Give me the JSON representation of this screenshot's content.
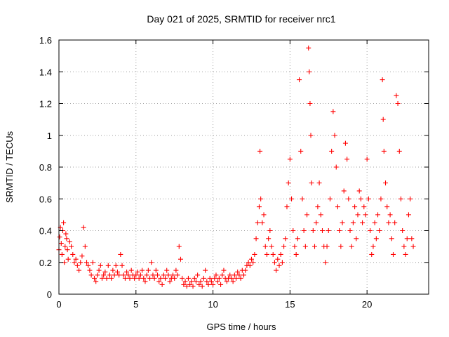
{
  "chart_data": {
    "type": "scatter",
    "title": "Day 021 of 2025, SRMTID for receiver nrc1",
    "xlabel": "GPS time / hours",
    "ylabel": "SRMTID / TECUs",
    "xlim": [
      0,
      24
    ],
    "ylim": [
      0,
      1.6
    ],
    "x_ticks": [
      0,
      5,
      10,
      15,
      20
    ],
    "x_tick_labels": [
      "0",
      "5",
      "10",
      "15",
      "20"
    ],
    "y_ticks": [
      0,
      0.2,
      0.4,
      0.6,
      0.8,
      1,
      1.2,
      1.4,
      1.6
    ],
    "y_tick_labels": [
      "0",
      "0.2",
      "0.4",
      "0.6",
      "0.8",
      "1",
      "1.2",
      "1.4",
      "1.6"
    ],
    "grid": true,
    "marker": "plus",
    "color": "#ff0000",
    "series": [
      {
        "name": "SRMTID",
        "points": [
          [
            0.0,
            0.28
          ],
          [
            0.05,
            0.36
          ],
          [
            0.1,
            0.42
          ],
          [
            0.15,
            0.32
          ],
          [
            0.2,
            0.25
          ],
          [
            0.25,
            0.4
          ],
          [
            0.3,
            0.45
          ],
          [
            0.35,
            0.2
          ],
          [
            0.4,
            0.3
          ],
          [
            0.45,
            0.38
          ],
          [
            0.5,
            0.35
          ],
          [
            0.55,
            0.28
          ],
          [
            0.6,
            0.22
          ],
          [
            0.7,
            0.33
          ],
          [
            0.8,
            0.3
          ],
          [
            0.9,
            0.25
          ],
          [
            1.0,
            0.2
          ],
          [
            1.1,
            0.22
          ],
          [
            1.2,
            0.18
          ],
          [
            1.3,
            0.15
          ],
          [
            1.4,
            0.2
          ],
          [
            1.5,
            0.24
          ],
          [
            1.6,
            0.42
          ],
          [
            1.7,
            0.3
          ],
          [
            1.8,
            0.2
          ],
          [
            1.9,
            0.18
          ],
          [
            2.0,
            0.15
          ],
          [
            2.1,
            0.12
          ],
          [
            2.2,
            0.2
          ],
          [
            2.3,
            0.1
          ],
          [
            2.4,
            0.08
          ],
          [
            2.5,
            0.12
          ],
          [
            2.6,
            0.15
          ],
          [
            2.7,
            0.18
          ],
          [
            2.8,
            0.1
          ],
          [
            2.9,
            0.12
          ],
          [
            3.0,
            0.14
          ],
          [
            3.1,
            0.1
          ],
          [
            3.2,
            0.18
          ],
          [
            3.3,
            0.12
          ],
          [
            3.4,
            0.1
          ],
          [
            3.5,
            0.15
          ],
          [
            3.6,
            0.12
          ],
          [
            3.7,
            0.18
          ],
          [
            3.8,
            0.14
          ],
          [
            3.9,
            0.12
          ],
          [
            4.0,
            0.25
          ],
          [
            4.1,
            0.18
          ],
          [
            4.2,
            0.12
          ],
          [
            4.3,
            0.1
          ],
          [
            4.4,
            0.14
          ],
          [
            4.5,
            0.12
          ],
          [
            4.6,
            0.1
          ],
          [
            4.7,
            0.15
          ],
          [
            4.8,
            0.12
          ],
          [
            4.9,
            0.1
          ],
          [
            5.0,
            0.12
          ],
          [
            5.1,
            0.14
          ],
          [
            5.2,
            0.1
          ],
          [
            5.3,
            0.12
          ],
          [
            5.4,
            0.15
          ],
          [
            5.5,
            0.1
          ],
          [
            5.6,
            0.08
          ],
          [
            5.7,
            0.12
          ],
          [
            5.8,
            0.15
          ],
          [
            5.9,
            0.1
          ],
          [
            6.0,
            0.2
          ],
          [
            6.1,
            0.12
          ],
          [
            6.2,
            0.1
          ],
          [
            6.3,
            0.15
          ],
          [
            6.4,
            0.12
          ],
          [
            6.5,
            0.08
          ],
          [
            6.6,
            0.1
          ],
          [
            6.7,
            0.06
          ],
          [
            6.8,
            0.12
          ],
          [
            6.9,
            0.1
          ],
          [
            7.0,
            0.15
          ],
          [
            7.1,
            0.12
          ],
          [
            7.2,
            0.08
          ],
          [
            7.3,
            0.1
          ],
          [
            7.4,
            0.12
          ],
          [
            7.5,
            0.1
          ],
          [
            7.6,
            0.15
          ],
          [
            7.7,
            0.12
          ],
          [
            7.8,
            0.3
          ],
          [
            7.9,
            0.22
          ],
          [
            8.0,
            0.1
          ],
          [
            8.1,
            0.06
          ],
          [
            8.2,
            0.08
          ],
          [
            8.3,
            0.05
          ],
          [
            8.4,
            0.1
          ],
          [
            8.5,
            0.06
          ],
          [
            8.6,
            0.08
          ],
          [
            8.7,
            0.05
          ],
          [
            8.8,
            0.1
          ],
          [
            8.9,
            0.08
          ],
          [
            9.0,
            0.12
          ],
          [
            9.1,
            0.06
          ],
          [
            9.2,
            0.08
          ],
          [
            9.3,
            0.05
          ],
          [
            9.4,
            0.1
          ],
          [
            9.5,
            0.15
          ],
          [
            9.6,
            0.08
          ],
          [
            9.7,
            0.06
          ],
          [
            9.8,
            0.1
          ],
          [
            9.9,
            0.08
          ],
          [
            10.0,
            0.06
          ],
          [
            10.1,
            0.1
          ],
          [
            10.2,
            0.12
          ],
          [
            10.3,
            0.08
          ],
          [
            10.4,
            0.1
          ],
          [
            10.5,
            0.06
          ],
          [
            10.6,
            0.12
          ],
          [
            10.7,
            0.15
          ],
          [
            10.8,
            0.1
          ],
          [
            10.9,
            0.08
          ],
          [
            11.0,
            0.1
          ],
          [
            11.1,
            0.12
          ],
          [
            11.2,
            0.1
          ],
          [
            11.3,
            0.08
          ],
          [
            11.4,
            0.12
          ],
          [
            11.5,
            0.1
          ],
          [
            11.6,
            0.14
          ],
          [
            11.7,
            0.12
          ],
          [
            11.8,
            0.1
          ],
          [
            11.9,
            0.15
          ],
          [
            12.0,
            0.12
          ],
          [
            12.1,
            0.15
          ],
          [
            12.2,
            0.18
          ],
          [
            12.3,
            0.2
          ],
          [
            12.4,
            0.18
          ],
          [
            12.5,
            0.22
          ],
          [
            12.6,
            0.2
          ],
          [
            12.7,
            0.25
          ],
          [
            12.8,
            0.35
          ],
          [
            12.9,
            0.45
          ],
          [
            13.0,
            0.55
          ],
          [
            13.05,
            0.9
          ],
          [
            13.1,
            0.6
          ],
          [
            13.2,
            0.45
          ],
          [
            13.3,
            0.5
          ],
          [
            13.4,
            0.3
          ],
          [
            13.5,
            0.25
          ],
          [
            13.6,
            0.35
          ],
          [
            13.7,
            0.4
          ],
          [
            13.8,
            0.3
          ],
          [
            13.9,
            0.25
          ],
          [
            14.0,
            0.2
          ],
          [
            14.1,
            0.15
          ],
          [
            14.2,
            0.22
          ],
          [
            14.3,
            0.18
          ],
          [
            14.4,
            0.25
          ],
          [
            14.5,
            0.2
          ],
          [
            14.6,
            0.3
          ],
          [
            14.7,
            0.35
          ],
          [
            14.8,
            0.55
          ],
          [
            14.9,
            0.7
          ],
          [
            15.0,
            0.85
          ],
          [
            15.1,
            0.6
          ],
          [
            15.2,
            0.4
          ],
          [
            15.3,
            0.3
          ],
          [
            15.4,
            0.25
          ],
          [
            15.5,
            0.35
          ],
          [
            15.6,
            1.35
          ],
          [
            15.7,
            0.9
          ],
          [
            15.8,
            0.6
          ],
          [
            15.9,
            0.4
          ],
          [
            16.0,
            0.3
          ],
          [
            16.1,
            0.5
          ],
          [
            16.2,
            1.55
          ],
          [
            16.25,
            1.4
          ],
          [
            16.3,
            1.2
          ],
          [
            16.35,
            1.0
          ],
          [
            16.4,
            0.7
          ],
          [
            16.5,
            0.4
          ],
          [
            16.6,
            0.3
          ],
          [
            16.7,
            0.45
          ],
          [
            16.8,
            0.55
          ],
          [
            16.9,
            0.7
          ],
          [
            17.0,
            0.5
          ],
          [
            17.1,
            0.4
          ],
          [
            17.2,
            0.3
          ],
          [
            17.3,
            0.2
          ],
          [
            17.4,
            0.3
          ],
          [
            17.5,
            0.4
          ],
          [
            17.6,
            0.6
          ],
          [
            17.7,
            0.9
          ],
          [
            17.8,
            1.15
          ],
          [
            17.9,
            1.0
          ],
          [
            18.0,
            0.8
          ],
          [
            18.1,
            0.55
          ],
          [
            18.2,
            0.4
          ],
          [
            18.3,
            0.3
          ],
          [
            18.4,
            0.45
          ],
          [
            18.5,
            0.65
          ],
          [
            18.6,
            0.95
          ],
          [
            18.7,
            0.85
          ],
          [
            18.8,
            0.6
          ],
          [
            18.9,
            0.4
          ],
          [
            19.0,
            0.3
          ],
          [
            19.1,
            0.45
          ],
          [
            19.2,
            0.55
          ],
          [
            19.3,
            0.35
          ],
          [
            19.4,
            0.5
          ],
          [
            19.5,
            0.65
          ],
          [
            19.6,
            0.6
          ],
          [
            19.7,
            0.45
          ],
          [
            19.8,
            0.55
          ],
          [
            19.9,
            0.5
          ],
          [
            20.0,
            0.85
          ],
          [
            20.1,
            0.6
          ],
          [
            20.2,
            0.4
          ],
          [
            20.3,
            0.25
          ],
          [
            20.4,
            0.3
          ],
          [
            20.5,
            0.45
          ],
          [
            20.6,
            0.35
          ],
          [
            20.7,
            0.5
          ],
          [
            20.8,
            0.4
          ],
          [
            20.9,
            0.6
          ],
          [
            21.0,
            1.35
          ],
          [
            21.05,
            1.1
          ],
          [
            21.1,
            0.9
          ],
          [
            21.2,
            0.7
          ],
          [
            21.3,
            0.55
          ],
          [
            21.4,
            0.45
          ],
          [
            21.5,
            0.5
          ],
          [
            21.6,
            0.35
          ],
          [
            21.7,
            0.25
          ],
          [
            21.8,
            0.45
          ],
          [
            21.9,
            1.25
          ],
          [
            22.0,
            1.2
          ],
          [
            22.1,
            0.9
          ],
          [
            22.2,
            0.6
          ],
          [
            22.3,
            0.4
          ],
          [
            22.4,
            0.3
          ],
          [
            22.5,
            0.25
          ],
          [
            22.6,
            0.35
          ],
          [
            22.7,
            0.5
          ],
          [
            22.8,
            0.6
          ],
          [
            22.9,
            0.35
          ],
          [
            23.0,
            0.3
          ]
        ]
      }
    ]
  }
}
